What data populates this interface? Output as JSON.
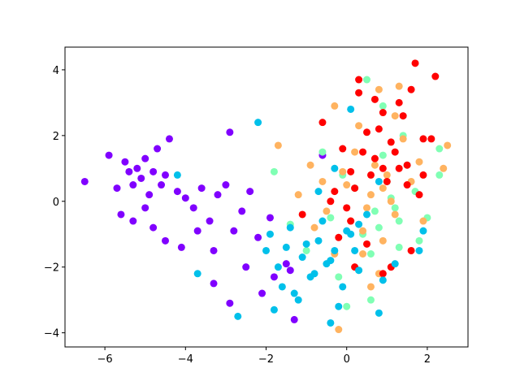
{
  "chart_data": {
    "type": "scatter",
    "xlim": [
      -6.99,
      3.01
    ],
    "ylim": [
      -4.43,
      4.69
    ],
    "xticks": [
      {
        "value": -6,
        "label": "−6"
      },
      {
        "value": -4,
        "label": "−4"
      },
      {
        "value": -2,
        "label": "−2"
      },
      0,
      2
    ],
    "yticks": [
      {
        "value": -4,
        "label": "−4"
      },
      {
        "value": -2,
        "label": "−2"
      },
      0,
      2,
      4
    ],
    "grid": false,
    "series": [
      {
        "color": "#8000ff",
        "x": [
          -6.5,
          -5.9,
          -5.7,
          -5.5,
          -5.4,
          -5.3,
          -5.2,
          -5.1,
          -5.0,
          -4.9,
          -4.8,
          -4.7,
          -4.6,
          -4.5,
          -5.6,
          -5.3,
          -5.0,
          -4.8,
          -4.4,
          -4.2,
          -4.0,
          -3.8,
          -3.6,
          -3.4,
          -3.2,
          -3.0,
          -2.8,
          -2.6,
          -2.4,
          -2.2,
          -4.5,
          -4.1,
          -3.7,
          -3.3,
          -2.9,
          -2.5,
          -2.1,
          -1.8,
          -1.5,
          -2.9,
          -3.3,
          -1.9,
          -1.3,
          -0.6,
          -1.4
        ],
        "y": [
          0.6,
          1.4,
          0.4,
          1.2,
          0.9,
          0.5,
          1.0,
          0.7,
          1.3,
          0.2,
          0.9,
          1.6,
          0.5,
          0.8,
          -0.4,
          -0.6,
          -0.2,
          -0.8,
          1.9,
          0.3,
          0.1,
          -0.2,
          0.4,
          -0.6,
          0.2,
          0.5,
          -0.9,
          -0.3,
          0.3,
          -1.1,
          -1.2,
          -1.4,
          -0.9,
          -2.5,
          2.1,
          -2.0,
          -2.8,
          -2.3,
          -1.9,
          -3.1,
          -1.5,
          -0.5,
          -3.6,
          1.4,
          -2.1
        ]
      },
      {
        "color": "#80ffb4",
        "x": [
          -1.8,
          -1.4,
          -1.0,
          -0.6,
          -0.2,
          0.2,
          0.5,
          0.7,
          0.9,
          1.1,
          1.3,
          1.5,
          1.7,
          0.4,
          0.6,
          0.8,
          1.0,
          1.2,
          1.4,
          0.0,
          -0.4,
          2.3,
          2.3,
          1.8,
          0.6,
          1.3,
          -0.1,
          0.9,
          0.3,
          2.0
        ],
        "y": [
          0.9,
          -0.7,
          -1.5,
          1.5,
          -2.3,
          0.4,
          3.7,
          -0.3,
          2.9,
          0.1,
          -0.6,
          1.1,
          0.3,
          -1.0,
          -1.6,
          -0.8,
          0.6,
          -0.2,
          2.0,
          -3.2,
          -0.5,
          1.6,
          0.8,
          -1.2,
          -3.0,
          -1.4,
          0.8,
          1.4,
          -2.1,
          -0.5
        ]
      },
      {
        "color": "#ffb360",
        "x": [
          -1.7,
          -1.2,
          -0.8,
          -0.3,
          -0.2,
          0.0,
          0.2,
          0.4,
          0.6,
          0.8,
          1.0,
          1.2,
          1.4,
          1.6,
          1.9,
          2.5,
          0.3,
          0.5,
          0.7,
          0.9,
          1.1,
          -0.1,
          -0.5,
          1.3,
          0.6,
          1.8,
          0.4,
          0.8,
          -0.9,
          0.1,
          2.4,
          1.2,
          -0.3,
          0.9,
          -0.6
        ],
        "y": [
          1.7,
          0.2,
          -0.8,
          2.9,
          -3.9,
          0.5,
          1.5,
          -1.6,
          0.2,
          3.4,
          0.8,
          -0.4,
          1.9,
          0.6,
          -0.6,
          1.7,
          2.3,
          -0.2,
          1.1,
          -1.2,
          0.0,
          0.9,
          -0.3,
          3.5,
          -2.6,
          1.2,
          -0.9,
          -2.2,
          1.1,
          -0.6,
          1.0,
          2.6,
          -1.6,
          0.4,
          0.6
        ]
      },
      {
        "color": "#ff0000",
        "x": [
          -0.6,
          -0.3,
          -0.1,
          0.1,
          0.3,
          0.5,
          0.7,
          0.9,
          1.1,
          1.3,
          1.5,
          1.7,
          1.9,
          2.2,
          1.6,
          0.2,
          0.4,
          0.6,
          0.8,
          1.0,
          1.2,
          1.4,
          1.8,
          0.0,
          -0.2,
          0.3,
          0.9,
          1.6,
          2.1,
          0.5,
          -0.4,
          1.1,
          0.7,
          1.5,
          0.2,
          1.3,
          -1.1,
          0.9,
          1.9,
          0.1
        ],
        "y": [
          2.4,
          0.3,
          1.6,
          0.9,
          3.7,
          2.1,
          1.3,
          2.7,
          1.8,
          3.0,
          1.1,
          4.2,
          1.9,
          3.8,
          3.4,
          0.4,
          1.5,
          0.8,
          2.2,
          0.6,
          1.5,
          2.6,
          0.2,
          -0.2,
          -1.1,
          3.3,
          1.0,
          -1.5,
          1.9,
          -1.3,
          0.0,
          -2.0,
          3.1,
          0.5,
          -2.0,
          1.0,
          -0.4,
          -2.2,
          0.8,
          -0.6
        ]
      },
      {
        "color": "#00c0ea",
        "x": [
          -2.2,
          -1.9,
          -1.7,
          -1.5,
          -1.3,
          -1.1,
          -0.9,
          -0.7,
          -0.5,
          -0.3,
          -0.1,
          0.1,
          0.3,
          -1.8,
          -1.6,
          -1.4,
          -1.2,
          -1.0,
          -0.8,
          -0.6,
          -0.4,
          -0.2,
          0.0,
          0.2,
          0.5,
          0.8,
          1.2,
          1.8,
          -2.7,
          -3.7,
          -2.0,
          -0.4,
          -0.3,
          0.1,
          0.8,
          -4.2,
          -0.7,
          0.3,
          0.9,
          1.9
        ],
        "y": [
          2.4,
          -1.0,
          -2.0,
          -1.4,
          -2.8,
          -1.7,
          -2.3,
          -1.2,
          -1.9,
          -1.5,
          -2.6,
          -1.0,
          -2.1,
          -3.3,
          -2.6,
          -0.8,
          -3.0,
          -1.3,
          -2.2,
          -0.6,
          -1.8,
          -3.2,
          -0.9,
          -1.5,
          -0.4,
          -3.4,
          -1.9,
          -1.5,
          -3.5,
          -2.2,
          -1.5,
          -3.7,
          1.0,
          2.8,
          0.6,
          0.8,
          0.3,
          -0.7,
          -2.4,
          -0.9
        ]
      }
    ]
  }
}
